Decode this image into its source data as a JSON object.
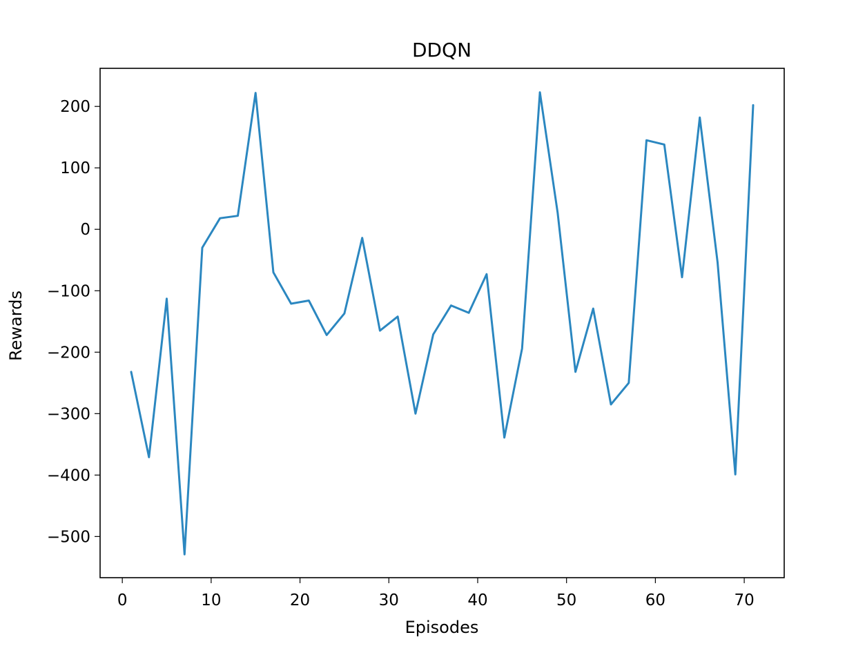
{
  "chart_data": {
    "type": "line",
    "title": "DDQN",
    "xlabel": "Episodes",
    "ylabel": "Rewards",
    "xlim": [
      -2.5,
      74.5
    ],
    "ylim": [
      -567,
      262
    ],
    "xticks": [
      0,
      10,
      20,
      30,
      40,
      50,
      60,
      70
    ],
    "yticks": [
      -500,
      -400,
      -300,
      -200,
      -100,
      0,
      100,
      200
    ],
    "tick_labels_x": [
      "0",
      "10",
      "20",
      "30",
      "40",
      "50",
      "60",
      "70"
    ],
    "tick_labels_y": [
      "−500",
      "−400",
      "−300",
      "−200",
      "−100",
      "0",
      "100",
      "200"
    ],
    "grid": false,
    "legend": false,
    "color": "#2b87c0",
    "series": [
      {
        "x": [
          1,
          3,
          5,
          7,
          9,
          11,
          13,
          15,
          17,
          19,
          21,
          23,
          25,
          27,
          29,
          31,
          33,
          35,
          37,
          39,
          41,
          43,
          45,
          47,
          49,
          51,
          53,
          55,
          57,
          59,
          61,
          63,
          65,
          67,
          69,
          71
        ],
        "values": [
          -232,
          -371,
          -113,
          -529,
          -30,
          18,
          22,
          222,
          -70,
          -121,
          -116,
          -172,
          -137,
          -14,
          -165,
          -142,
          -300,
          -171,
          -124,
          -136,
          -73,
          -339,
          -194,
          223,
          27,
          -232,
          -129,
          -285,
          -250,
          145,
          138,
          -78,
          182,
          -54,
          -399,
          202
        ]
      }
    ]
  }
}
